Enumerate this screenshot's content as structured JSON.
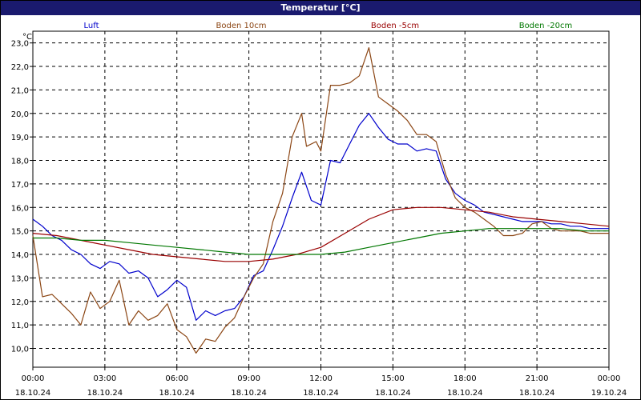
{
  "window": {
    "title": "Temperatur [°C]"
  },
  "chart_data": {
    "type": "line",
    "ylabel": "°C",
    "ylim": [
      9.2,
      23.5
    ],
    "yticks": [
      "10,0",
      "11,0",
      "12,0",
      "13,0",
      "14,0",
      "15,0",
      "16,0",
      "17,0",
      "18,0",
      "19,0",
      "20,0",
      "21,0",
      "22,0",
      "23,0"
    ],
    "xlim": [
      0,
      24
    ],
    "xticks": [
      {
        "time": "00:00",
        "date": "18.10.24"
      },
      {
        "time": "03:00",
        "date": "18.10.24"
      },
      {
        "time": "06:00",
        "date": "18.10.24"
      },
      {
        "time": "09:00",
        "date": "18.10.24"
      },
      {
        "time": "12:00",
        "date": "18.10.24"
      },
      {
        "time": "15:00",
        "date": "18.10.24"
      },
      {
        "time": "18:00",
        "date": "18.10.24"
      },
      {
        "time": "21:00",
        "date": "18.10.24"
      },
      {
        "time": "00:00",
        "date": "19.10.24"
      }
    ],
    "grid": true,
    "legend_position": "top",
    "series": [
      {
        "name": "Luft",
        "color": "#0000cc",
        "x": [
          0,
          0.4,
          0.8,
          1.2,
          1.6,
          2.0,
          2.4,
          2.8,
          3.2,
          3.6,
          4.0,
          4.4,
          4.8,
          5.2,
          5.6,
          6.0,
          6.4,
          6.8,
          7.2,
          7.6,
          8.0,
          8.4,
          8.8,
          9.2,
          9.6,
          10.0,
          10.4,
          10.8,
          11.2,
          11.6,
          12.0,
          12.4,
          12.8,
          13.2,
          13.6,
          14.0,
          14.4,
          14.8,
          15.2,
          15.6,
          16.0,
          16.4,
          16.8,
          17.2,
          17.6,
          18.0,
          18.4,
          18.8,
          19.2,
          19.6,
          20.0,
          20.4,
          20.8,
          21.2,
          21.6,
          22.0,
          22.4,
          22.8,
          23.2,
          23.6,
          24.0
        ],
        "y": [
          15.5,
          15.2,
          14.8,
          14.6,
          14.2,
          14.0,
          13.6,
          13.4,
          13.7,
          13.6,
          13.2,
          13.3,
          13.0,
          12.2,
          12.5,
          12.9,
          12.6,
          11.2,
          11.6,
          11.4,
          11.6,
          11.7,
          12.2,
          13.1,
          13.3,
          14.2,
          15.2,
          16.4,
          17.5,
          16.3,
          16.1,
          18.0,
          17.9,
          18.7,
          19.5,
          20.0,
          19.4,
          18.9,
          18.7,
          18.7,
          18.4,
          18.5,
          18.4,
          17.2,
          16.6,
          16.3,
          16.1,
          15.8,
          15.7,
          15.6,
          15.5,
          15.4,
          15.4,
          15.4,
          15.3,
          15.3,
          15.2,
          15.2,
          15.1,
          15.1,
          15.1
        ]
      },
      {
        "name": "Boden 10cm",
        "color": "#8b4513",
        "x": [
          0,
          0.4,
          0.8,
          1.2,
          1.6,
          2.0,
          2.4,
          2.8,
          3.2,
          3.6,
          4.0,
          4.4,
          4.8,
          5.2,
          5.6,
          6.0,
          6.4,
          6.8,
          7.2,
          7.6,
          8.0,
          8.4,
          8.8,
          9.2,
          9.6,
          10.0,
          10.4,
          10.8,
          11.2,
          11.4,
          11.8,
          12.0,
          12.4,
          12.8,
          13.2,
          13.6,
          14.0,
          14.4,
          14.8,
          15.2,
          15.6,
          16.0,
          16.4,
          16.8,
          17.2,
          17.6,
          18.0,
          18.4,
          18.8,
          19.2,
          19.6,
          20.0,
          20.4,
          20.8,
          21.2,
          21.6,
          22.0,
          22.4,
          22.8,
          23.2,
          23.6,
          24.0
        ],
        "y": [
          14.8,
          12.2,
          12.3,
          11.9,
          11.5,
          11.0,
          12.4,
          11.7,
          12.0,
          12.9,
          11.0,
          11.6,
          11.2,
          11.4,
          11.9,
          10.8,
          10.5,
          9.8,
          10.4,
          10.3,
          10.9,
          11.3,
          12.2,
          13.0,
          13.6,
          15.4,
          16.6,
          19.0,
          20.0,
          18.6,
          18.8,
          18.4,
          21.2,
          21.2,
          21.3,
          21.6,
          22.8,
          20.7,
          20.4,
          20.1,
          19.7,
          19.1,
          19.1,
          18.8,
          17.4,
          16.4,
          16.0,
          15.8,
          15.5,
          15.2,
          14.8,
          14.8,
          14.9,
          15.3,
          15.4,
          15.1,
          15.0,
          15.0,
          15.0,
          14.9,
          14.9,
          14.9
        ]
      },
      {
        "name": "Boden -5cm",
        "color": "#990000",
        "x": [
          0,
          1,
          2,
          3,
          4,
          5,
          6,
          7,
          8,
          9,
          10,
          11,
          12,
          13,
          14,
          15,
          16,
          17,
          18,
          19,
          20,
          21,
          22,
          23,
          24
        ],
        "y": [
          14.9,
          14.8,
          14.6,
          14.4,
          14.2,
          14.0,
          13.9,
          13.8,
          13.7,
          13.7,
          13.8,
          14.0,
          14.3,
          14.9,
          15.5,
          15.9,
          16.0,
          16.0,
          15.9,
          15.8,
          15.6,
          15.5,
          15.4,
          15.3,
          15.2
        ]
      },
      {
        "name": "Boden -20cm",
        "color": "#007700",
        "x": [
          0,
          1,
          2,
          3,
          4,
          5,
          6,
          7,
          8,
          9,
          10,
          11,
          12,
          13,
          14,
          15,
          16,
          17,
          18,
          19,
          20,
          21,
          22,
          23,
          24
        ],
        "y": [
          14.7,
          14.7,
          14.6,
          14.6,
          14.5,
          14.4,
          14.3,
          14.2,
          14.1,
          14.0,
          14.0,
          14.0,
          14.0,
          14.1,
          14.3,
          14.5,
          14.7,
          14.9,
          15.0,
          15.1,
          15.1,
          15.1,
          15.1,
          15.0,
          15.0
        ]
      }
    ]
  }
}
